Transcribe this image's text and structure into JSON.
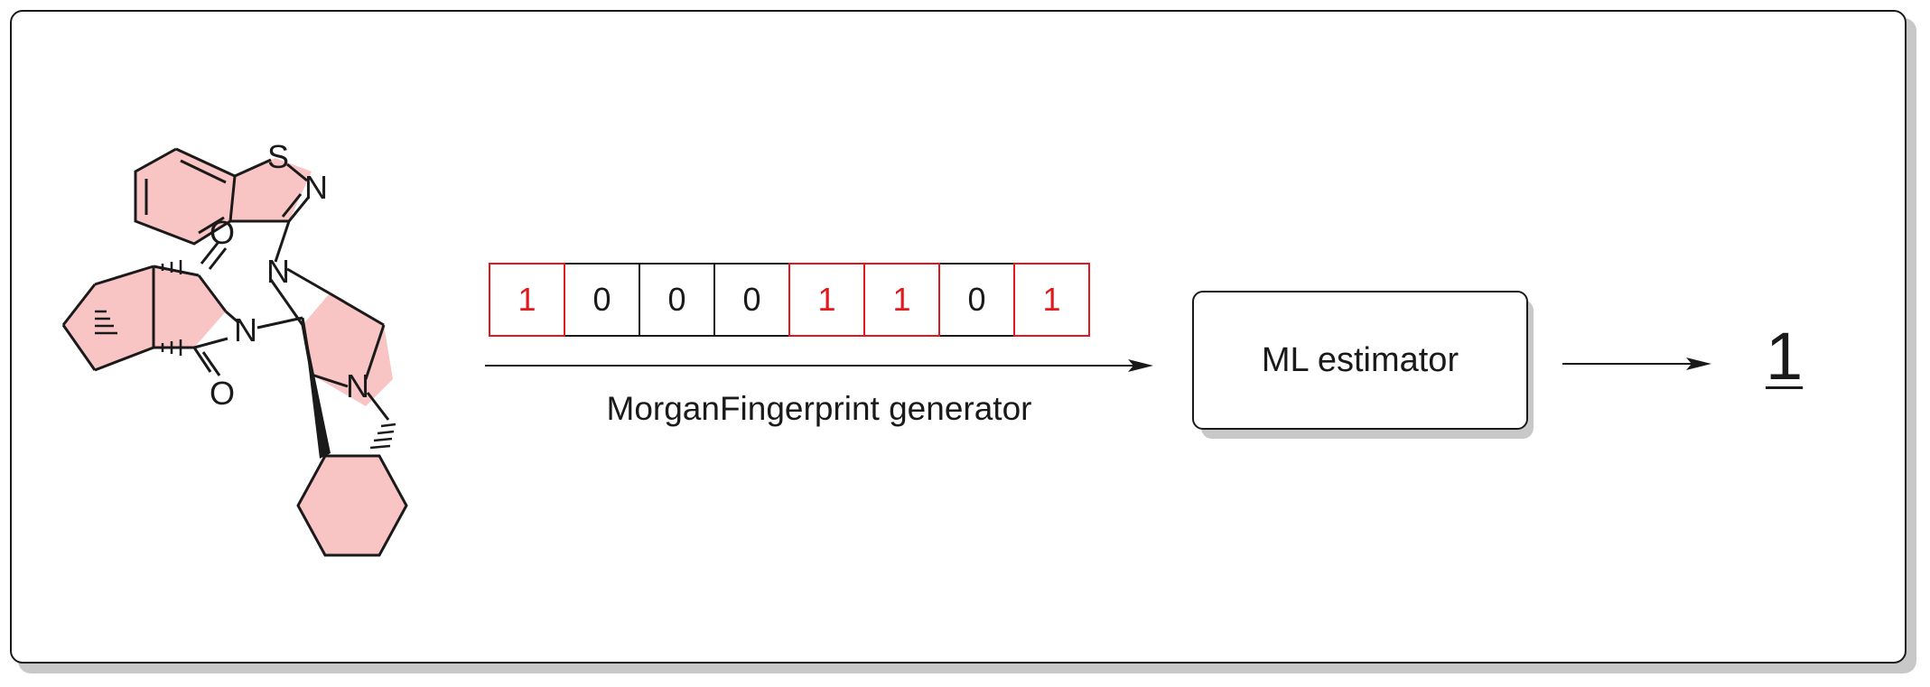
{
  "molecule": {
    "atom_labels": [
      "S",
      "N",
      "N",
      "N",
      "O",
      "N",
      "O"
    ],
    "highlight_color": "#f8c4c4"
  },
  "fingerprint": {
    "bits": [
      "1",
      "0",
      "0",
      "0",
      "1",
      "1",
      "0",
      "1"
    ],
    "on_color": "#e0191e",
    "off_color": "#1a1a1a"
  },
  "generator_label": "MorganFingerprint generator",
  "estimator_label": "ML estimator",
  "output_value": "1"
}
